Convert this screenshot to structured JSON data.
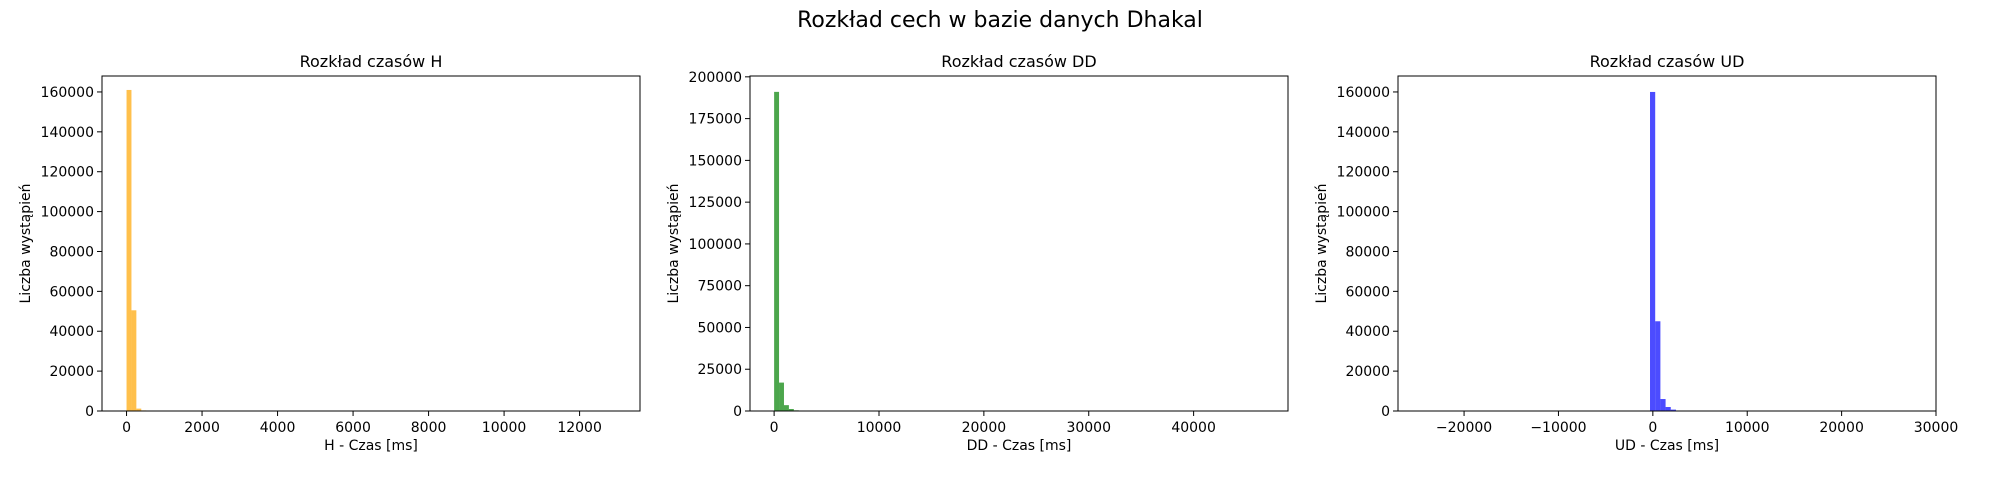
{
  "figure": {
    "suptitle": "Rozkład cech w bazie danych Dhakal"
  },
  "chart_data": [
    {
      "type": "bar",
      "title": "Rozkład czasów H",
      "xlabel": "H - Czas [ms]",
      "ylabel": "Liczba wystąpień",
      "color": "#FFA500",
      "opacity": 0.7,
      "xlim": [
        -650,
        13600
      ],
      "ylim": [
        0,
        168000
      ],
      "xticks": [
        0,
        2000,
        4000,
        6000,
        8000,
        10000,
        12000
      ],
      "xtick_labels": [
        "0",
        "2000",
        "4000",
        "6000",
        "8000",
        "10000",
        "12000"
      ],
      "yticks": [
        0,
        20000,
        40000,
        60000,
        80000,
        100000,
        120000,
        140000,
        160000
      ],
      "ytick_labels": [
        "0",
        "20000",
        "40000",
        "60000",
        "80000",
        "100000",
        "120000",
        "140000",
        "160000"
      ],
      "bins": [
        {
          "x0": 0,
          "x1": 130,
          "count": 161000
        },
        {
          "x0": 130,
          "x1": 260,
          "count": 50500
        },
        {
          "x0": 260,
          "x1": 390,
          "count": 1200
        },
        {
          "x0": 390,
          "x1": 520,
          "count": 300
        }
      ]
    },
    {
      "type": "bar",
      "title": "Rozkład czasów DD",
      "xlabel": "DD - Czas [ms]",
      "ylabel": "Liczba wystąpień",
      "color": "#008000",
      "opacity": 0.7,
      "xlim": [
        -2300,
        49000
      ],
      "ylim": [
        0,
        200500
      ],
      "xticks": [
        0,
        10000,
        20000,
        30000,
        40000
      ],
      "xtick_labels": [
        "0",
        "10000",
        "20000",
        "30000",
        "40000"
      ],
      "yticks": [
        0,
        25000,
        50000,
        75000,
        100000,
        125000,
        150000,
        175000,
        200000
      ],
      "ytick_labels": [
        "0",
        "25000",
        "50000",
        "75000",
        "100000",
        "125000",
        "150000",
        "175000",
        "200000"
      ],
      "bins": [
        {
          "x0": 0,
          "x1": 470,
          "count": 191000
        },
        {
          "x0": 470,
          "x1": 940,
          "count": 17000
        },
        {
          "x0": 940,
          "x1": 1410,
          "count": 3500
        },
        {
          "x0": 1410,
          "x1": 1880,
          "count": 1200
        },
        {
          "x0": 1880,
          "x1": 2350,
          "count": 400
        }
      ]
    },
    {
      "type": "bar",
      "title": "Rozkład czasów UD",
      "xlabel": "UD - Czas [ms]",
      "ylabel": "Liczba wystąpień",
      "color": "#0000FF",
      "opacity": 0.7,
      "xlim": [
        -27000,
        30000
      ],
      "ylim": [
        0,
        168000
      ],
      "xticks": [
        -20000,
        -10000,
        0,
        10000,
        20000,
        30000
      ],
      "xtick_labels": [
        "−20000",
        "−10000",
        "0",
        "10000",
        "20000",
        "30000"
      ],
      "yticks": [
        0,
        20000,
        40000,
        60000,
        80000,
        100000,
        120000,
        140000,
        160000
      ],
      "ytick_labels": [
        "0",
        "20000",
        "40000",
        "60000",
        "80000",
        "100000",
        "120000",
        "140000",
        "160000"
      ],
      "bins": [
        {
          "x0": -300,
          "x1": 250,
          "count": 160000
        },
        {
          "x0": 250,
          "x1": 800,
          "count": 45000
        },
        {
          "x0": 800,
          "x1": 1350,
          "count": 6000
        },
        {
          "x0": 1350,
          "x1": 1900,
          "count": 2000
        },
        {
          "x0": 1900,
          "x1": 2450,
          "count": 700
        }
      ]
    }
  ]
}
